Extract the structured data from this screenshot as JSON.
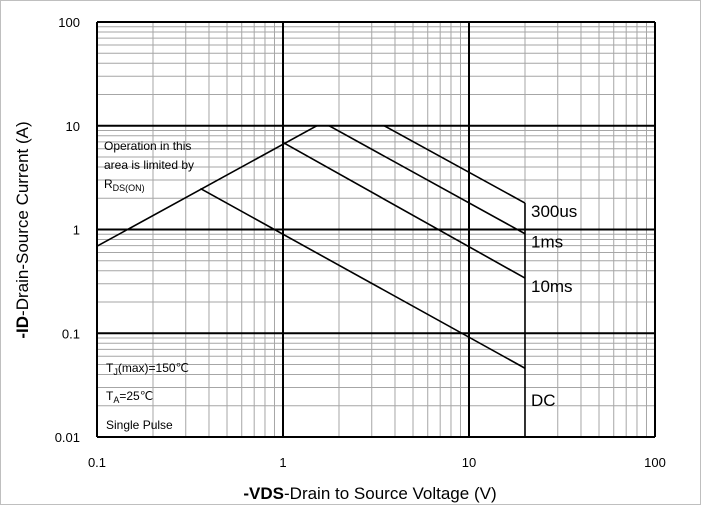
{
  "chart_data": {
    "type": "line",
    "xlabel": {
      "bold": "-VDS",
      "rest": "-Drain to Source Voltage (V)"
    },
    "ylabel": {
      "bold": "-ID",
      "rest": "-Drain-Source Current (A)"
    },
    "xscale": "log",
    "yscale": "log",
    "xlim": [
      0.1,
      100
    ],
    "ylim": [
      0.01,
      100
    ],
    "xticks": [
      0.1,
      1,
      10,
      100
    ],
    "yticks": [
      0.01,
      0.1,
      1,
      10,
      100
    ],
    "grid": true,
    "color": "#000000",
    "series": [
      {
        "x": [
          0.1,
          1.52,
          3.5
        ],
        "y": [
          0.69,
          10,
          10
        ],
        "color": "#000000"
      },
      {
        "name": "300us",
        "x": [
          3.5,
          20
        ],
        "y": [
          10,
          1.8
        ],
        "color": "#000000"
      },
      {
        "name": "1ms",
        "x": [
          1.77,
          20
        ],
        "y": [
          10,
          0.91
        ],
        "color": "#000000"
      },
      {
        "name": "10ms",
        "x": [
          1,
          20
        ],
        "y": [
          6.9,
          0.34
        ],
        "color": "#000000"
      },
      {
        "name": "DC",
        "x": [
          0.36,
          20
        ],
        "y": [
          2.48,
          0.046
        ],
        "color": "#000000"
      },
      {
        "x": [
          20,
          20
        ],
        "y": [
          1.8,
          0.01
        ],
        "color": "#000000"
      }
    ],
    "annotations": {
      "region": [
        "Operation in this",
        "area is limited by"
      ],
      "rds": {
        "main": "R",
        "sub": "DS(ON)"
      },
      "tj": {
        "main": "T",
        "sub": "J",
        "rest": "(max)=150℃"
      },
      "ta": {
        "main": "T",
        "sub": "A",
        "rest": "=25℃"
      },
      "pulse": "Single Pulse"
    }
  }
}
